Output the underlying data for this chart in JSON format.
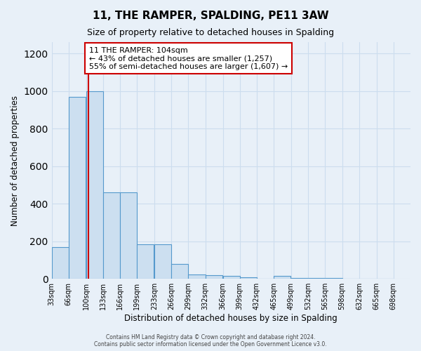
{
  "title": "11, THE RAMPER, SPALDING, PE11 3AW",
  "subtitle": "Size of property relative to detached houses in Spalding",
  "xlabel": "Distribution of detached houses by size in Spalding",
  "ylabel": "Number of detached properties",
  "bin_labels": [
    "33sqm",
    "66sqm",
    "100sqm",
    "133sqm",
    "166sqm",
    "199sqm",
    "233sqm",
    "266sqm",
    "299sqm",
    "332sqm",
    "366sqm",
    "399sqm",
    "432sqm",
    "465sqm",
    "499sqm",
    "532sqm",
    "565sqm",
    "598sqm",
    "632sqm",
    "665sqm",
    "698sqm"
  ],
  "bin_edges": [
    33,
    66,
    100,
    133,
    166,
    199,
    233,
    266,
    299,
    332,
    366,
    399,
    432,
    465,
    499,
    532,
    565,
    598,
    632,
    665,
    698
  ],
  "bar_heights": [
    170,
    970,
    1000,
    460,
    460,
    185,
    185,
    78,
    25,
    20,
    15,
    8,
    0,
    15,
    5,
    4,
    3,
    0,
    0,
    0
  ],
  "bar_color": "#ccdff0",
  "bar_edgecolor": "#5599cc",
  "property_size": 104,
  "property_line_color": "#cc0000",
  "annotation_text": "11 THE RAMPER: 104sqm\n← 43% of detached houses are smaller (1,257)\n55% of semi-detached houses are larger (1,607) →",
  "annotation_box_color": "#ffffff",
  "annotation_box_edgecolor": "#cc0000",
  "ylim": [
    0,
    1260
  ],
  "yticks": [
    0,
    200,
    400,
    600,
    800,
    1000,
    1200
  ],
  "grid_color": "#ccddee",
  "footer_text": "Contains HM Land Registry data © Crown copyright and database right 2024.\nContains public sector information licensed under the Open Government Licence v3.0.",
  "background_color": "#e8f0f8",
  "plot_background_color": "#e8f0f8"
}
